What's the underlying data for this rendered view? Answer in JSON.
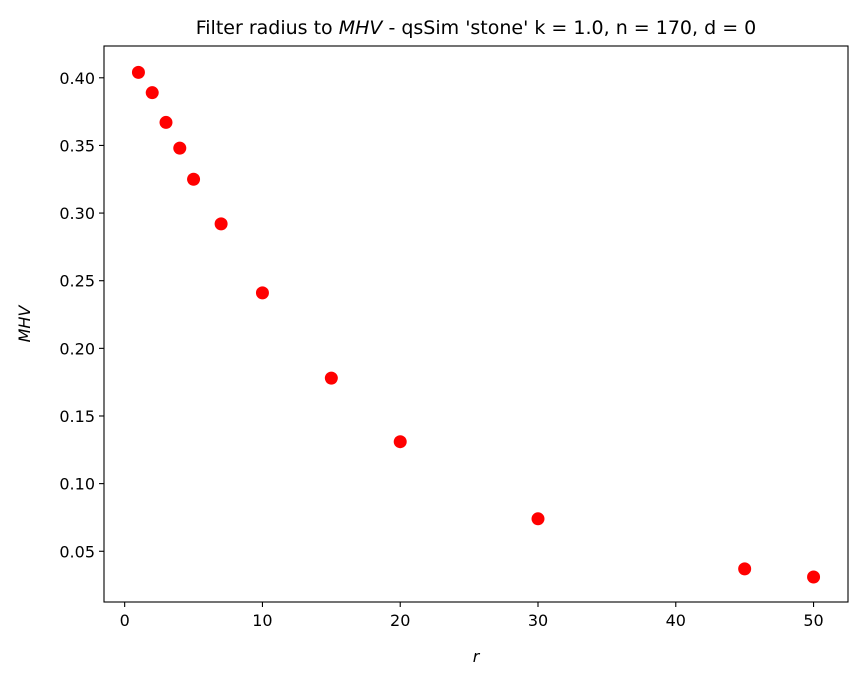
{
  "chart_data": {
    "type": "scatter",
    "title": {
      "prefix": "Filter radius to ",
      "var": "MHV",
      "middle": " - qsSim 'stone' ",
      "params": [
        "k = 1.0",
        "n = 170",
        "d = 0"
      ]
    },
    "xlabel": "r",
    "ylabel": "MHV",
    "xlim": [
      -1.5,
      52.5
    ],
    "ylim": [
      0.0125,
      0.4235
    ],
    "xticks": [
      0,
      10,
      20,
      30,
      40,
      50
    ],
    "xtick_labels": [
      "0",
      "10",
      "20",
      "30",
      "40",
      "50"
    ],
    "yticks": [
      0.05,
      0.1,
      0.15,
      0.2,
      0.25,
      0.3,
      0.35,
      0.4
    ],
    "ytick_labels": [
      "0.05",
      "0.10",
      "0.15",
      "0.20",
      "0.25",
      "0.30",
      "0.35",
      "0.40"
    ],
    "grid": false,
    "marker_color": "#ff0000",
    "points": [
      {
        "x": 1,
        "y": 0.404
      },
      {
        "x": 2,
        "y": 0.389
      },
      {
        "x": 3,
        "y": 0.367
      },
      {
        "x": 4,
        "y": 0.348
      },
      {
        "x": 5,
        "y": 0.325
      },
      {
        "x": 7,
        "y": 0.292
      },
      {
        "x": 10,
        "y": 0.241
      },
      {
        "x": 15,
        "y": 0.178
      },
      {
        "x": 20,
        "y": 0.131
      },
      {
        "x": 30,
        "y": 0.074
      },
      {
        "x": 45,
        "y": 0.037
      },
      {
        "x": 50,
        "y": 0.031
      }
    ]
  }
}
